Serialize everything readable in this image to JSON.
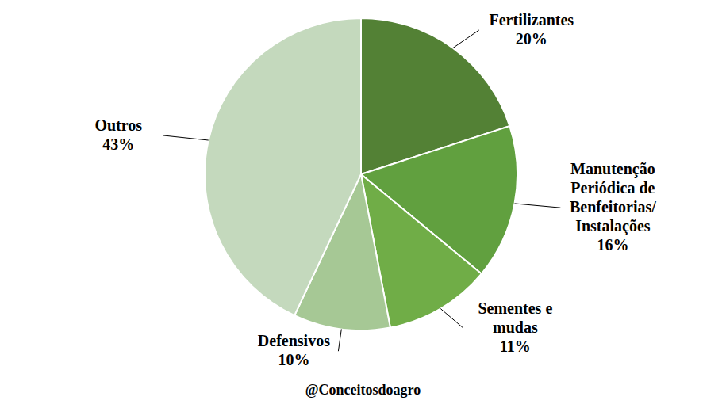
{
  "chart_data": {
    "type": "pie",
    "categories": [
      "Fertilizantes",
      "Manutenção Periódica de Benfeitorias/ Instalações",
      "Sementes e mudas",
      "Defensivos",
      "Outros"
    ],
    "values": [
      20,
      16,
      11,
      10,
      43
    ],
    "value_labels": [
      "20%",
      "16%",
      "11%",
      "10%",
      "43%"
    ],
    "colors": [
      "#538135",
      "#61a03f",
      "#70ad47",
      "#a6c895",
      "#c4d9bd"
    ],
    "data_labels": true,
    "annotations": [
      "@Conceitosdoagro"
    ]
  }
}
